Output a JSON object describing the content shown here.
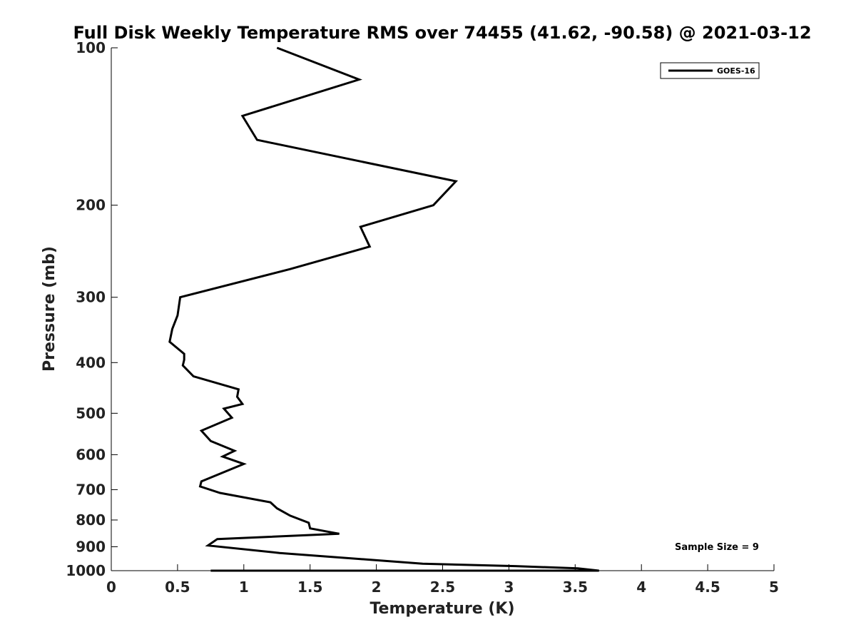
{
  "chart_data": {
    "type": "line",
    "title": "Full Disk Weekly Temperature RMS over 74455 (41.62, -90.58) @ 2021-03-12",
    "xlabel": "Temperature (K)",
    "ylabel": "Pressure (mb)",
    "xlim": [
      0,
      5
    ],
    "ylim": [
      100,
      1000
    ],
    "y_scale": "log",
    "y_reversed": true,
    "x_ticks": [
      "0",
      "0.5",
      "1",
      "1.5",
      "2",
      "2.5",
      "3",
      "3.5",
      "4",
      "4.5",
      "5"
    ],
    "x_tick_values": [
      0,
      0.5,
      1,
      1.5,
      2,
      2.5,
      3,
      3.5,
      4,
      4.5,
      5
    ],
    "y_ticks": [
      "100",
      "200",
      "300",
      "400",
      "500",
      "600",
      "700",
      "800",
      "900",
      "1000"
    ],
    "y_tick_values": [
      100,
      200,
      300,
      400,
      500,
      600,
      700,
      800,
      900,
      1000
    ],
    "grid": false,
    "legend_position": "top-right",
    "annotation": "Sample Size = 9",
    "series": [
      {
        "name": "GOES-16",
        "color": "#000000",
        "x": [
          1.25,
          1.87,
          0.99,
          1.1,
          2.6,
          2.43,
          1.88,
          1.95,
          1.35,
          0.52,
          0.5,
          0.46,
          0.44,
          0.55,
          0.55,
          0.54,
          0.62,
          0.96,
          0.95,
          0.99,
          0.85,
          0.91,
          0.68,
          0.75,
          0.93,
          0.84,
          1.0,
          0.68,
          0.67,
          0.82,
          1.2,
          1.25,
          1.35,
          1.49,
          1.5,
          1.72,
          0.8,
          0.73,
          1.27,
          2.35,
          3.05,
          3.52,
          3.68,
          0.75
        ],
        "y": [
          100,
          115,
          135,
          150,
          180,
          200,
          220,
          240,
          265,
          300,
          325,
          345,
          365,
          385,
          395,
          405,
          425,
          450,
          465,
          480,
          490,
          510,
          540,
          565,
          590,
          605,
          625,
          675,
          690,
          710,
          740,
          760,
          785,
          810,
          830,
          850,
          870,
          895,
          925,
          970,
          980,
          990,
          1000,
          1030
        ]
      }
    ]
  }
}
